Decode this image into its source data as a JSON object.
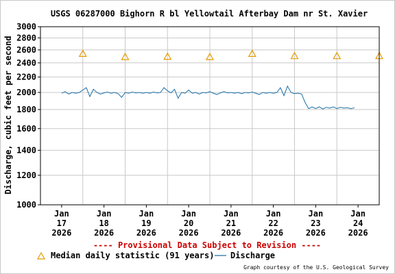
{
  "chart_data": {
    "type": "line",
    "title": "USGS 06287000 Bighorn R bl Yellowtail Afterbay Dam nr St. Xavier",
    "ylabel": "Discharge, cubic feet per second",
    "ylim": [
      1000,
      3000
    ],
    "y_scale": "log",
    "y_ticks": [
      "3000",
      "2800",
      "2600",
      "2400",
      "2200",
      "2000",
      "1800",
      "1600",
      "1400",
      "1200",
      "1000"
    ],
    "x_ticks": [
      {
        "month": "Jan",
        "day": "17",
        "year": "2026"
      },
      {
        "month": "Jan",
        "day": "18",
        "year": "2026"
      },
      {
        "month": "Jan",
        "day": "19",
        "year": "2026"
      },
      {
        "month": "Jan",
        "day": "20",
        "year": "2026"
      },
      {
        "month": "Jan",
        "day": "21",
        "year": "2026"
      },
      {
        "month": "Jan",
        "day": "22",
        "year": "2026"
      },
      {
        "month": "Jan",
        "day": "23",
        "year": "2026"
      },
      {
        "month": "Jan",
        "day": "24",
        "year": "2026"
      }
    ],
    "grid": true,
    "colors": {
      "discharge": "#1a6fa6",
      "median": "#e69b00",
      "grid": "#c8c8c8",
      "provisional": "#cc0000"
    },
    "series": [
      {
        "name": "Discharge",
        "style": "line",
        "points": [
          [
            "2026-01-17 00:00",
            1990
          ],
          [
            "2026-01-17 02:00",
            2010
          ],
          [
            "2026-01-17 04:00",
            1980
          ],
          [
            "2026-01-17 06:00",
            2000
          ],
          [
            "2026-01-17 08:00",
            1990
          ],
          [
            "2026-01-17 10:00",
            2000
          ],
          [
            "2026-01-17 12:00",
            2030
          ],
          [
            "2026-01-17 14:00",
            2060
          ],
          [
            "2026-01-17 16:00",
            1950
          ],
          [
            "2026-01-17 18:00",
            2040
          ],
          [
            "2026-01-17 20:00",
            2000
          ],
          [
            "2026-01-17 22:00",
            1980
          ],
          [
            "2026-01-18 00:00",
            1995
          ],
          [
            "2026-01-18 02:00",
            2005
          ],
          [
            "2026-01-18 04:00",
            1990
          ],
          [
            "2026-01-18 06:00",
            2000
          ],
          [
            "2026-01-18 08:00",
            1985
          ],
          [
            "2026-01-18 10:00",
            1940
          ],
          [
            "2026-01-18 12:00",
            2000
          ],
          [
            "2026-01-18 14:00",
            1990
          ],
          [
            "2026-01-18 16:00",
            2005
          ],
          [
            "2026-01-18 18:00",
            1995
          ],
          [
            "2026-01-18 20:00",
            2000
          ],
          [
            "2026-01-18 22:00",
            1990
          ],
          [
            "2026-01-19 00:00",
            2000
          ],
          [
            "2026-01-19 02:00",
            1990
          ],
          [
            "2026-01-19 04:00",
            2005
          ],
          [
            "2026-01-19 06:00",
            1995
          ],
          [
            "2026-01-19 08:00",
            2000
          ],
          [
            "2026-01-19 10:00",
            2060
          ],
          [
            "2026-01-19 12:00",
            2020
          ],
          [
            "2026-01-19 14:00",
            1995
          ],
          [
            "2026-01-19 16:00",
            2040
          ],
          [
            "2026-01-19 18:00",
            1930
          ],
          [
            "2026-01-19 20:00",
            2000
          ],
          [
            "2026-01-19 22:00",
            1990
          ],
          [
            "2026-01-20 00:00",
            2030
          ],
          [
            "2026-01-20 02:00",
            1990
          ],
          [
            "2026-01-20 04:00",
            2000
          ],
          [
            "2026-01-20 06:00",
            1980
          ],
          [
            "2026-01-20 08:00",
            2000
          ],
          [
            "2026-01-20 10:00",
            1995
          ],
          [
            "2026-01-20 12:00",
            2010
          ],
          [
            "2026-01-20 14:00",
            1990
          ],
          [
            "2026-01-20 16:00",
            1975
          ],
          [
            "2026-01-20 18:00",
            1995
          ],
          [
            "2026-01-20 20:00",
            2010
          ],
          [
            "2026-01-20 22:00",
            1995
          ],
          [
            "2026-01-21 00:00",
            2000
          ],
          [
            "2026-01-21 02:00",
            1990
          ],
          [
            "2026-01-21 04:00",
            2000
          ],
          [
            "2026-01-21 06:00",
            1985
          ],
          [
            "2026-01-21 08:00",
            2000
          ],
          [
            "2026-01-21 10:00",
            1995
          ],
          [
            "2026-01-21 12:00",
            2005
          ],
          [
            "2026-01-21 14:00",
            1990
          ],
          [
            "2026-01-21 16:00",
            1975
          ],
          [
            "2026-01-21 18:00",
            2000
          ],
          [
            "2026-01-21 20:00",
            1990
          ],
          [
            "2026-01-21 22:00",
            2000
          ],
          [
            "2026-01-22 00:00",
            1990
          ],
          [
            "2026-01-22 02:00",
            2000
          ],
          [
            "2026-01-22 04:00",
            2060
          ],
          [
            "2026-01-22 06:00",
            1960
          ],
          [
            "2026-01-22 08:00",
            2080
          ],
          [
            "2026-01-22 10:00",
            2000
          ],
          [
            "2026-01-22 12:00",
            1985
          ],
          [
            "2026-01-22 14:00",
            1990
          ],
          [
            "2026-01-22 16:00",
            1980
          ],
          [
            "2026-01-22 18:00",
            1880
          ],
          [
            "2026-01-22 20:00",
            1810
          ],
          [
            "2026-01-22 22:00",
            1830
          ],
          [
            "2026-01-23 00:00",
            1810
          ],
          [
            "2026-01-23 02:00",
            1830
          ],
          [
            "2026-01-23 04:00",
            1805
          ],
          [
            "2026-01-23 06:00",
            1825
          ],
          [
            "2026-01-23 08:00",
            1815
          ],
          [
            "2026-01-23 10:00",
            1830
          ],
          [
            "2026-01-23 12:00",
            1810
          ],
          [
            "2026-01-23 14:00",
            1825
          ],
          [
            "2026-01-23 16:00",
            1815
          ],
          [
            "2026-01-23 18:00",
            1820
          ],
          [
            "2026-01-23 20:00",
            1810
          ],
          [
            "2026-01-23 22:00",
            1820
          ]
        ]
      },
      {
        "name": "Median daily statistic (91 years)",
        "style": "marker",
        "points": [
          [
            "2026-01-17 12:00",
            2540
          ],
          [
            "2026-01-18 12:00",
            2490
          ],
          [
            "2026-01-19 12:00",
            2495
          ],
          [
            "2026-01-20 12:00",
            2490
          ],
          [
            "2026-01-21 12:00",
            2540
          ],
          [
            "2026-01-22 12:00",
            2505
          ],
          [
            "2026-01-23 12:00",
            2505
          ],
          [
            "2026-01-24 12:00",
            2505
          ]
        ]
      }
    ],
    "provisional_note": "---- Provisional Data Subject to Revision ----",
    "legend": {
      "median_label": "Median daily statistic (91 years)",
      "discharge_label": "Discharge"
    },
    "credit": "Graph courtesy of the U.S. Geological Survey"
  }
}
